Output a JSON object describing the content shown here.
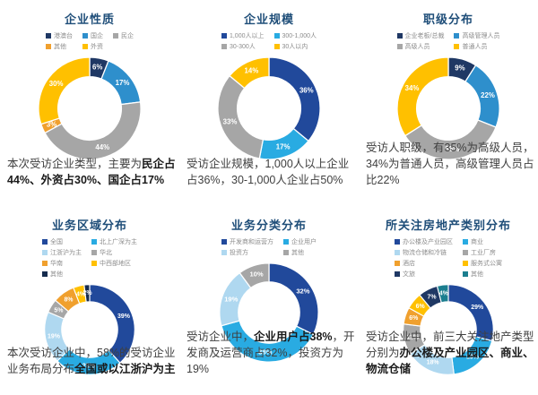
{
  "chart_data": [
    {
      "type": "donut",
      "title": "企业性质",
      "legend_columns": 3,
      "slices": [
        {
          "label": "港澳台",
          "value": 6,
          "color": "#1F3864"
        },
        {
          "label": "国企",
          "value": 17,
          "color": "#2E8FCC"
        },
        {
          "label": "民企",
          "value": 44,
          "color": "#A6A6A6"
        },
        {
          "label": "其他",
          "value": 3,
          "color": "#F0A02E"
        },
        {
          "label": "外资",
          "value": 30,
          "color": "#FFC000"
        }
      ],
      "caption_segments": [
        {
          "text": "本次受访企业类型，主要为",
          "bold": false
        },
        {
          "text": "民企占44%、外资占30%、国企占17%",
          "bold": true
        }
      ]
    },
    {
      "type": "donut",
      "title": "企业规模",
      "legend_columns": 2,
      "slices": [
        {
          "label": "1,000人以上",
          "value": 36,
          "color": "#21499B"
        },
        {
          "label": "300-1,000人",
          "value": 17,
          "color": "#29ABE2"
        },
        {
          "label": "30-300人",
          "value": 33,
          "color": "#A6A6A6"
        },
        {
          "label": "30人以内",
          "value": 14,
          "color": "#FFC000"
        }
      ],
      "caption_segments": [
        {
          "text": "受访企业规模，1,000人以上企业占36%，30-1,000人企业占50%",
          "bold": false
        }
      ]
    },
    {
      "type": "donut",
      "title": "职级分布",
      "legend_columns": 2,
      "slices": [
        {
          "label": "企业老板/总裁",
          "value": 9,
          "color": "#1F3864"
        },
        {
          "label": "高级管理人员",
          "value": 22,
          "color": "#2E8FCC"
        },
        {
          "label": "高级人员",
          "value": 35,
          "color": "#A6A6A6"
        },
        {
          "label": "普通人员",
          "value": 34,
          "color": "#FFC000"
        }
      ],
      "caption_segments": [
        {
          "text": "受访人职级，有35%为高级人员，34%为普通人员，高级管理人员占比22%",
          "bold": false
        }
      ]
    },
    {
      "type": "donut",
      "title": "业务区域分布",
      "legend_columns": 2,
      "slices": [
        {
          "label": "全国",
          "value": 39,
          "color": "#21499B"
        },
        {
          "label": "北上广深为主",
          "value": 25,
          "color": "#29ABE2"
        },
        {
          "label": "江浙沪为主",
          "value": 19,
          "color": "#AFD8F0"
        },
        {
          "label": "华北",
          "value": 5,
          "color": "#A6A6A6"
        },
        {
          "label": "华南",
          "value": 8,
          "color": "#F0A02E"
        },
        {
          "label": "中西部地区",
          "value": 4,
          "color": "#FFC000"
        },
        {
          "label": "其他",
          "value": 2,
          "color": "#152B4E"
        }
      ],
      "caption_segments": [
        {
          "text": "本次受访企业中，58%的受访企业业务布局分布",
          "bold": false
        },
        {
          "text": "全国或以江浙沪为主",
          "bold": true
        }
      ]
    },
    {
      "type": "donut",
      "title": "业务分类分布",
      "legend_columns": 2,
      "slices": [
        {
          "label": "开发商和运营方",
          "value": 32,
          "color": "#21499B"
        },
        {
          "label": "企业用户",
          "value": 38,
          "color": "#29ABE2"
        },
        {
          "label": "投资方",
          "value": 19,
          "color": "#AFD8F0"
        },
        {
          "label": "其他",
          "value": 10,
          "color": "#A6A6A6"
        }
      ],
      "caption_segments": [
        {
          "text": "受访企业中，",
          "bold": false
        },
        {
          "text": "企业用户占38%",
          "bold": true
        },
        {
          "text": "，开发商及运营商占32%，投资方为19%",
          "bold": false
        }
      ]
    },
    {
      "type": "donut",
      "title": "所关注房地产类别分布",
      "legend_columns": 2,
      "slices": [
        {
          "label": "办公楼及产业园区",
          "value": 29,
          "color": "#21499B"
        },
        {
          "label": "商业",
          "value": 19,
          "color": "#29ABE2"
        },
        {
          "label": "物流仓储和冷链",
          "value": 18,
          "color": "#AFD8F0"
        },
        {
          "label": "工业厂房",
          "value": 11,
          "color": "#A6A6A6"
        },
        {
          "label": "酒店",
          "value": 6,
          "color": "#F0A02E"
        },
        {
          "label": "服务式公寓",
          "value": 6,
          "color": "#FFC000"
        },
        {
          "label": "文旅",
          "value": 7,
          "color": "#1F3864"
        },
        {
          "label": "其他",
          "value": 4,
          "color": "#1B7E8F"
        }
      ],
      "caption_segments": [
        {
          "text": "受访企业中，前三大关注地产类型分别为",
          "bold": false
        },
        {
          "text": "办公楼及产业园区、商业、物流仓储",
          "bold": true
        }
      ]
    }
  ]
}
